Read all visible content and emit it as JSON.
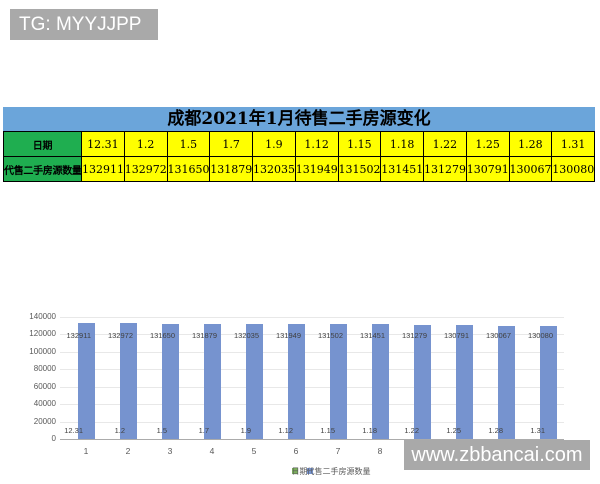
{
  "watermarks": {
    "top_left": "TG: MYYJJPP",
    "bottom_right": "www.zbbancai.com"
  },
  "title": "成都2021年1月待售二手房源变化",
  "table": {
    "row1_header": "日期",
    "row2_header": "代售二手房源数量",
    "dates": [
      "12.31",
      "1.2",
      "1.5",
      "1.7",
      "1.9",
      "1.12",
      "1.15",
      "1.18",
      "1.22",
      "1.25",
      "1.28",
      "1.31"
    ],
    "values": [
      "132911",
      "132972",
      "131650",
      "131879",
      "132035",
      "131949",
      "131502",
      "131451",
      "131279",
      "130791",
      "130067",
      "130080"
    ]
  },
  "chart_data": {
    "type": "bar",
    "title": "成都2021年1月待售二手房源变化",
    "categories": [
      "1",
      "2",
      "3",
      "4",
      "5",
      "6",
      "7",
      "8",
      "9",
      "10",
      "11",
      "12"
    ],
    "series": [
      {
        "name": "日期",
        "color": "#7caf5c",
        "values": [
          12.31,
          1.2,
          1.5,
          1.7,
          1.9,
          1.12,
          1.15,
          1.18,
          1.22,
          1.25,
          1.28,
          1.31
        ],
        "labels": [
          "12.31",
          "1.2",
          "1.5",
          "1.7",
          "1.9",
          "1.12",
          "1.15",
          "1.18",
          "1.22",
          "1.25",
          "1.28",
          "1.31"
        ]
      },
      {
        "name": "代售二手房源数量",
        "color": "#7693cf",
        "values": [
          132911,
          132972,
          131650,
          131879,
          132035,
          131949,
          131502,
          131451,
          131279,
          130791,
          130067,
          130080
        ],
        "labels": [
          "132911",
          "132972",
          "131650",
          "131879",
          "132035",
          "131949",
          "131502",
          "131451",
          "131279",
          "130791",
          "130067",
          "130080"
        ]
      }
    ],
    "ylim": [
      0,
      140000
    ],
    "yticks": [
      0,
      20000,
      40000,
      60000,
      80000,
      100000,
      120000,
      140000
    ],
    "ytick_labels": [
      "0",
      "20000",
      "40000",
      "60000",
      "80000",
      "100000",
      "120000",
      "140000"
    ],
    "grid": true,
    "legend_position": "bottom"
  },
  "colors": {
    "title_band_blue": "#6ba5da",
    "header_green": "#1fae50",
    "cell_yellow": "#ffff00",
    "bar_blue": "#7693cf",
    "legend_green": "#7caf5c",
    "watermark_gray": "#a9a9a9",
    "gridline_gray": "#e8e8e8",
    "axis_gray": "#ababab",
    "chart_text_gray": "#595959"
  }
}
